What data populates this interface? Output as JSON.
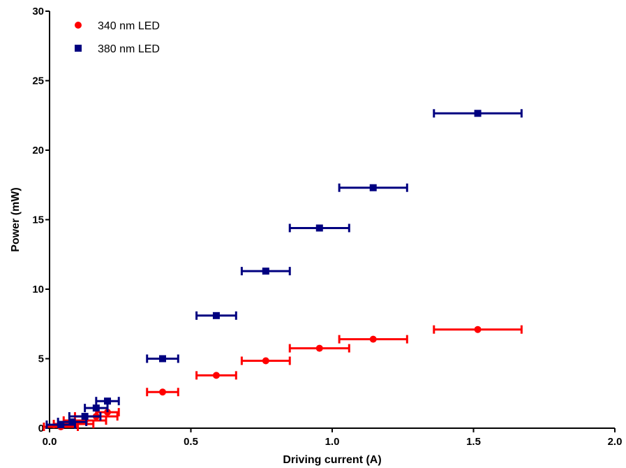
{
  "chart_data": {
    "type": "scatter",
    "xlabel": "Driving current (A)",
    "ylabel": "Power (mW)",
    "xlim": [
      0,
      2.0
    ],
    "ylim": [
      0,
      30
    ],
    "x_ticks": [
      "0.0",
      "0.5",
      "1.0",
      "1.5",
      "2.0"
    ],
    "y_ticks": [
      "0",
      "5",
      "10",
      "15",
      "20",
      "25",
      "30"
    ],
    "grid": false,
    "legend_position": "top-left",
    "series": [
      {
        "name": "340 nm LED",
        "color": "#ff0000",
        "marker": "circle",
        "points": [
          {
            "x": 0.04,
            "y": 0.1,
            "xerr": 0.06
          },
          {
            "x": 0.085,
            "y": 0.3,
            "xerr": 0.07
          },
          {
            "x": 0.125,
            "y": 0.55,
            "xerr": 0.075
          },
          {
            "x": 0.165,
            "y": 0.85,
            "xerr": 0.075
          },
          {
            "x": 0.205,
            "y": 1.15,
            "xerr": 0.04
          },
          {
            "x": 0.4,
            "y": 2.6,
            "xerr": 0.055
          },
          {
            "x": 0.59,
            "y": 3.8,
            "xerr": 0.07
          },
          {
            "x": 0.765,
            "y": 4.85,
            "xerr": 0.085
          },
          {
            "x": 0.955,
            "y": 5.75,
            "xerr": 0.105
          },
          {
            "x": 1.145,
            "y": 6.4,
            "xerr": 0.12
          },
          {
            "x": 1.515,
            "y": 7.1,
            "xerr": 0.155
          }
        ]
      },
      {
        "name": "380 nm LED",
        "color": "#000080",
        "marker": "square",
        "points": [
          {
            "x": 0.04,
            "y": 0.25,
            "xerr": 0.05
          },
          {
            "x": 0.08,
            "y": 0.45,
            "xerr": 0.05
          },
          {
            "x": 0.125,
            "y": 0.85,
            "xerr": 0.055
          },
          {
            "x": 0.165,
            "y": 1.45,
            "xerr": 0.04
          },
          {
            "x": 0.205,
            "y": 1.95,
            "xerr": 0.04
          },
          {
            "x": 0.4,
            "y": 5.0,
            "xerr": 0.055
          },
          {
            "x": 0.59,
            "y": 8.1,
            "xerr": 0.07
          },
          {
            "x": 0.765,
            "y": 11.3,
            "xerr": 0.085
          },
          {
            "x": 0.955,
            "y": 14.4,
            "xerr": 0.105
          },
          {
            "x": 1.145,
            "y": 17.3,
            "xerr": 0.12
          },
          {
            "x": 1.515,
            "y": 22.65,
            "xerr": 0.155
          }
        ]
      }
    ]
  }
}
